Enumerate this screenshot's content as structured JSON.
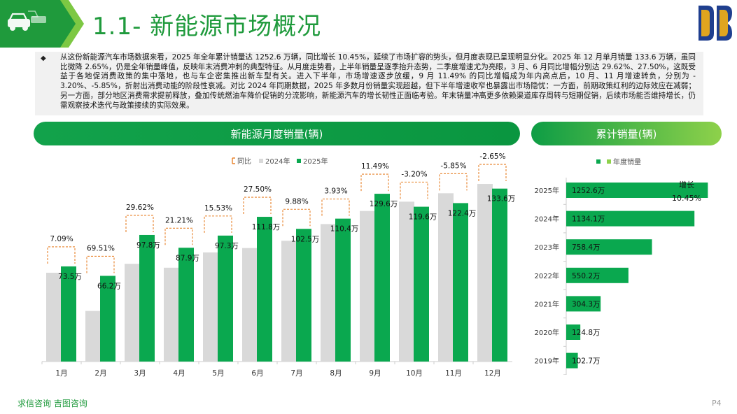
{
  "header": {
    "title": "1.1- 新能源市场概况",
    "colors": {
      "brand_green": "#1f9a3c",
      "dark_green": "#0d8f3e",
      "logo_blue": "#1f3f8f",
      "logo_gold": "#e0a51f"
    },
    "icons": [
      "car-icon",
      "company-logo-icon"
    ]
  },
  "summary": {
    "bullet": "◆",
    "text": "从这份新能源汽车市场数据来看，2025 年全年累计销量达 1252.6 万辆，同比增长 10.45%，延续了市场扩容的势头，但月度表现已呈现明显分化。2025 年 12 月单月销量 133.6 万辆，虽同比微降 2.65%，仍是全年销量峰值，反映年末消费冲刺的典型特征。从月度走势看，上半年销量呈逐季抬升态势，二季度增速尤为亮眼，3 月、6 月同比增幅分别达 29.62%、27.50%，这既受益于各地促消费政策的集中落地，也与车企密集推出新车型有关。进入下半年，市场增速逐步放缓，9 月 11.49% 的同比增幅成为年内高点后，10 月、11 月增速转负，分别为 - 3.20%、-5.85%，折射出消费动能的阶段性衰减。对比 2024 年同期数据，2025 年多数月份销量实现超越，但下半年增速收窄也暴露出市场隐忧：一方面，前期政策红利的边际效应在减弱；另一方面，部分地区消费需求提前释放，叠加传统燃油车降价促销的分流影响，新能源汽车的增长韧性正面临考验。年末销量冲高更多依赖渠道库存周转与短期促销，后续市场能否维持增长，仍需观察技术迭代与政策接续的实际效果。"
  },
  "sections": {
    "monthly_title": "新能源月度销量(辆)",
    "cumulative_title": "累计销量(辆)"
  },
  "footer": {
    "brand": "求信咨询  吉图咨询",
    "page": "P4"
  },
  "chart_data": [
    {
      "type": "bar",
      "title": "新能源月度销量(辆)",
      "categories": [
        "1月",
        "2月",
        "3月",
        "4月",
        "5月",
        "6月",
        "7月",
        "8月",
        "9月",
        "10月",
        "11月",
        "12月"
      ],
      "legend": [
        "同比",
        "2024年",
        "2025年"
      ],
      "legend_position": "top-center",
      "series": [
        {
          "name": "2024年",
          "color": "#d9d9d9",
          "values": [
            68.6,
            39.1,
            75.5,
            72.5,
            84.3,
            87.7,
            93.3,
            106.2,
            116.3,
            123.5,
            130.0,
            137.2
          ]
        },
        {
          "name": "2025年",
          "color": "#0aa84f",
          "values": [
            73.5,
            66.2,
            97.8,
            87.9,
            97.3,
            111.8,
            102.5,
            110.4,
            129.6,
            119.6,
            122.4,
            133.6
          ],
          "labels": [
            "73.5万",
            "66.2万",
            "97.8万",
            "87.9万",
            "97.3万",
            "111.8万",
            "102.5万",
            "110.4万",
            "129.6万",
            "119.6万",
            "122.4万",
            "133.6万"
          ]
        },
        {
          "name": "同比",
          "color": "#e8822a",
          "labels": [
            "7.09%",
            "69.51%",
            "29.62%",
            "21.21%",
            "15.53%",
            "27.50%",
            "9.88%",
            "3.93%",
            "11.49%",
            "-3.20%",
            "-5.85%",
            "-2.65%"
          ]
        }
      ],
      "ylim": [
        0,
        160
      ],
      "grid": false
    },
    {
      "type": "bar",
      "orientation": "horizontal",
      "title": "累计销量(辆)",
      "legend": [
        "",
        "年度销量"
      ],
      "legend_position": "top-center",
      "categories": [
        "2025年",
        "2024年",
        "2023年",
        "2022年",
        "2021年",
        "2020年",
        "2019年"
      ],
      "values": [
        1252.6,
        1134.1,
        758.4,
        550.2,
        304.3,
        124.8,
        102.7
      ],
      "labels": [
        "1252.6万",
        "1134.1万",
        "758.4万",
        "550.2万",
        "304.3万",
        "124.8万",
        "102.7万"
      ],
      "annotation": {
        "line1": "增长",
        "line2": "10.45%"
      },
      "color": "#0aa84f",
      "xlim": [
        0,
        1300
      ]
    }
  ]
}
